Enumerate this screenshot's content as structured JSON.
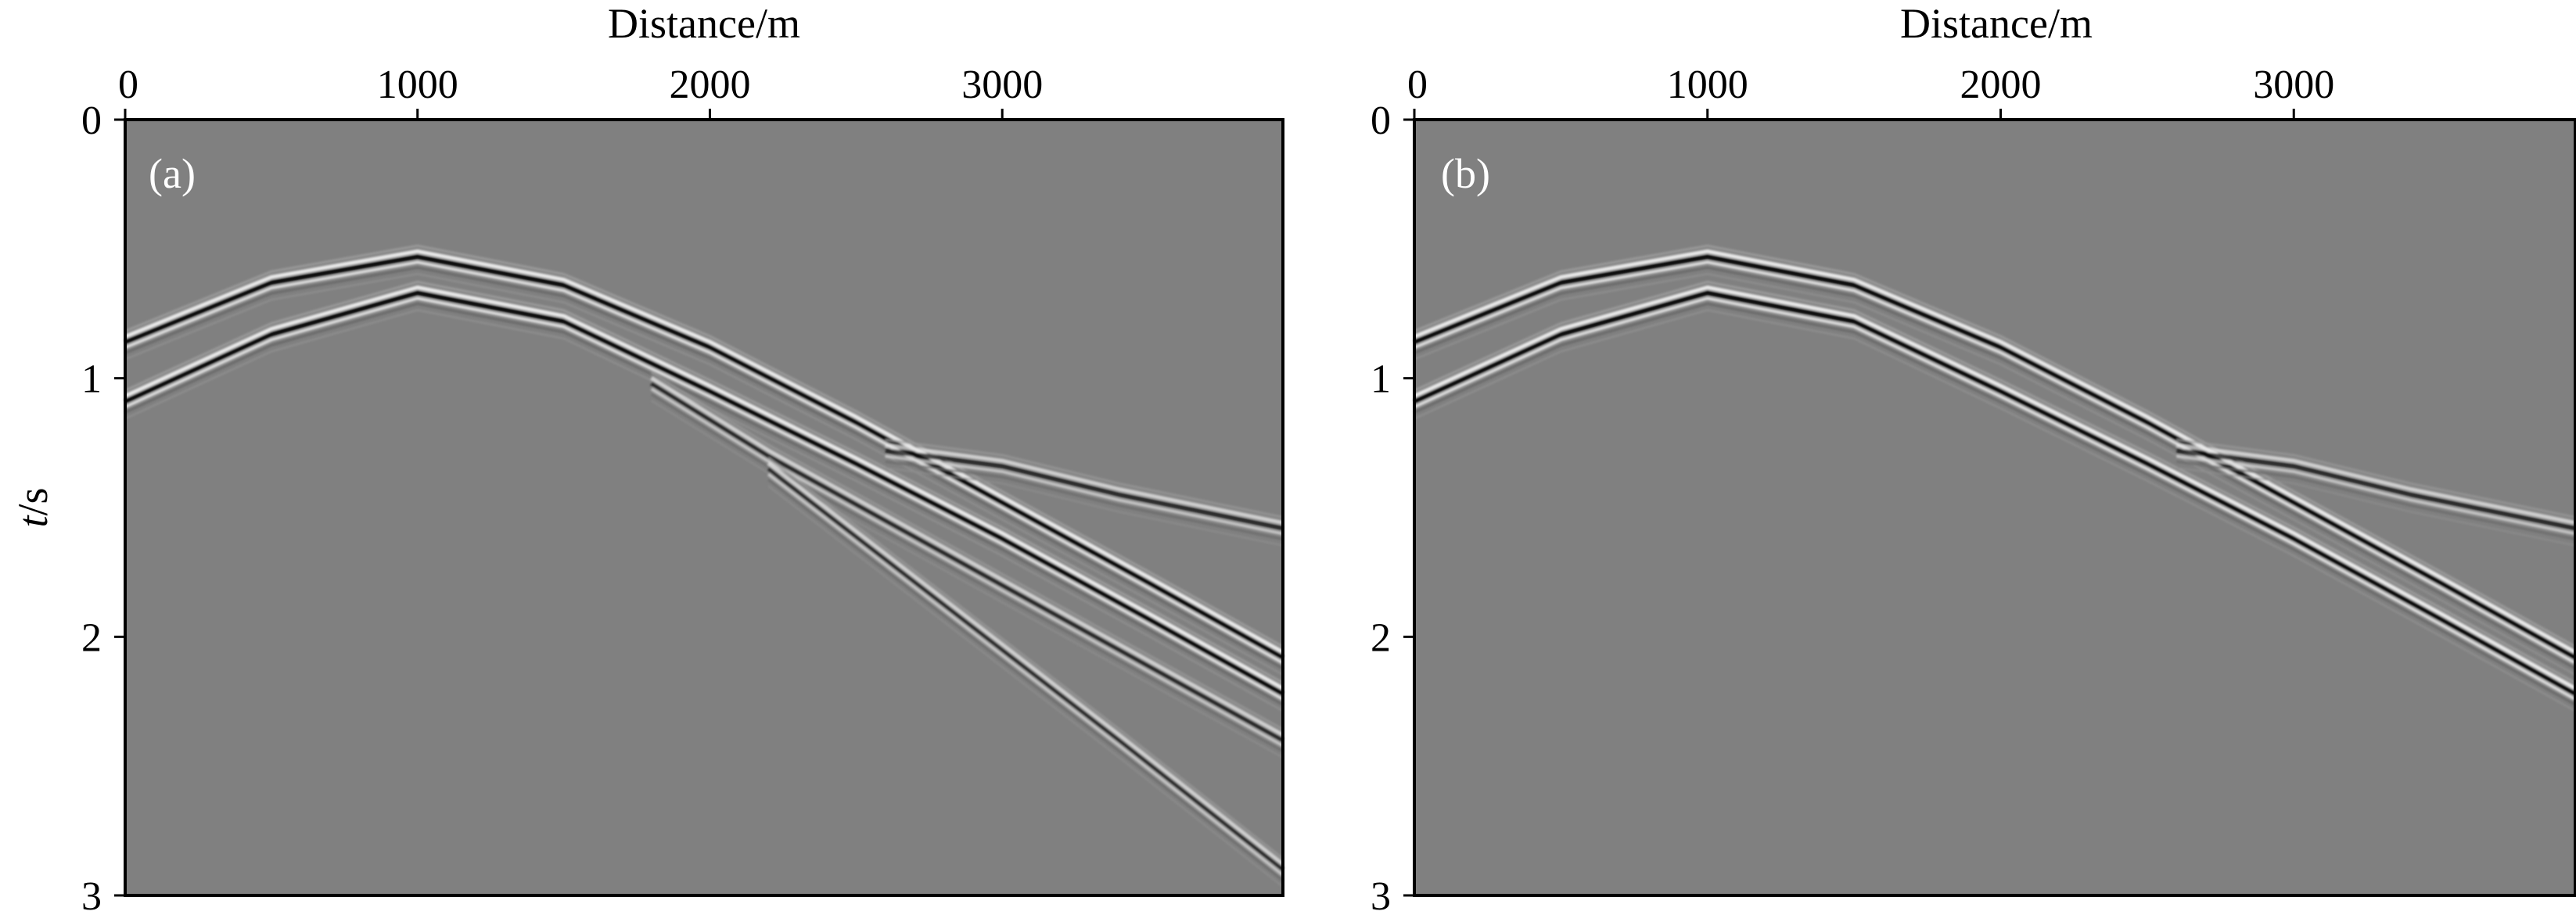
{
  "chart_data": [
    {
      "type": "heatmap",
      "panel_label": "(a)",
      "xlabel": "Distance/m",
      "ylabel_italic": "t",
      "ylabel_unit": "/s",
      "x_ticks": [
        0,
        1000,
        2000,
        3000
      ],
      "y_ticks": [
        0,
        1,
        2,
        3
      ],
      "xlim": [
        0,
        3960
      ],
      "ylim": [
        0,
        3
      ],
      "x_axis_position": "top",
      "y_axis_inverted": true,
      "colormap": "grayscale",
      "background_color": "#808080",
      "events": [
        {
          "x": [
            0,
            500,
            1000,
            1500,
            2000,
            2500,
            3000,
            3500,
            3960
          ],
          "t": [
            0.86,
            0.63,
            0.53,
            0.64,
            0.88,
            1.17,
            1.48,
            1.79,
            2.08
          ]
        },
        {
          "x": [
            0,
            500,
            1000,
            1500,
            2000,
            2500,
            3000,
            3500,
            3960
          ],
          "t": [
            1.09,
            0.83,
            0.67,
            0.78,
            1.05,
            1.33,
            1.62,
            1.93,
            2.22
          ]
        },
        {
          "x": [
            1800,
            2200,
            2600,
            3000,
            3400,
            3960
          ],
          "t": [
            1.02,
            1.3,
            1.55,
            1.8,
            2.05,
            2.4
          ]
        },
        {
          "x": [
            2200,
            2600,
            3000,
            3400,
            3960
          ],
          "t": [
            1.35,
            1.7,
            2.05,
            2.4,
            2.9
          ]
        },
        {
          "x": [
            2600,
            3000,
            3400,
            3960
          ],
          "t": [
            1.28,
            1.34,
            1.45,
            1.58
          ]
        }
      ]
    },
    {
      "type": "heatmap",
      "panel_label": "(b)",
      "xlabel": "Distance/m",
      "x_ticks": [
        0,
        1000,
        2000,
        3000
      ],
      "y_ticks": [
        0,
        1,
        2,
        3
      ],
      "xlim": [
        0,
        3960
      ],
      "ylim": [
        0,
        3
      ],
      "x_axis_position": "top",
      "y_axis_inverted": true,
      "colormap": "grayscale",
      "background_color": "#808080",
      "events": [
        {
          "x": [
            0,
            500,
            1000,
            1500,
            2000,
            2500,
            3000,
            3500,
            3960
          ],
          "t": [
            0.86,
            0.63,
            0.53,
            0.64,
            0.88,
            1.17,
            1.48,
            1.79,
            2.08
          ]
        },
        {
          "x": [
            0,
            500,
            1000,
            1500,
            2000,
            2500,
            3000,
            3500,
            3960
          ],
          "t": [
            1.09,
            0.83,
            0.67,
            0.78,
            1.05,
            1.33,
            1.62,
            1.93,
            2.22
          ]
        },
        {
          "x": [
            2600,
            3000,
            3400,
            3960
          ],
          "t": [
            1.28,
            1.34,
            1.45,
            1.58
          ]
        }
      ]
    }
  ]
}
